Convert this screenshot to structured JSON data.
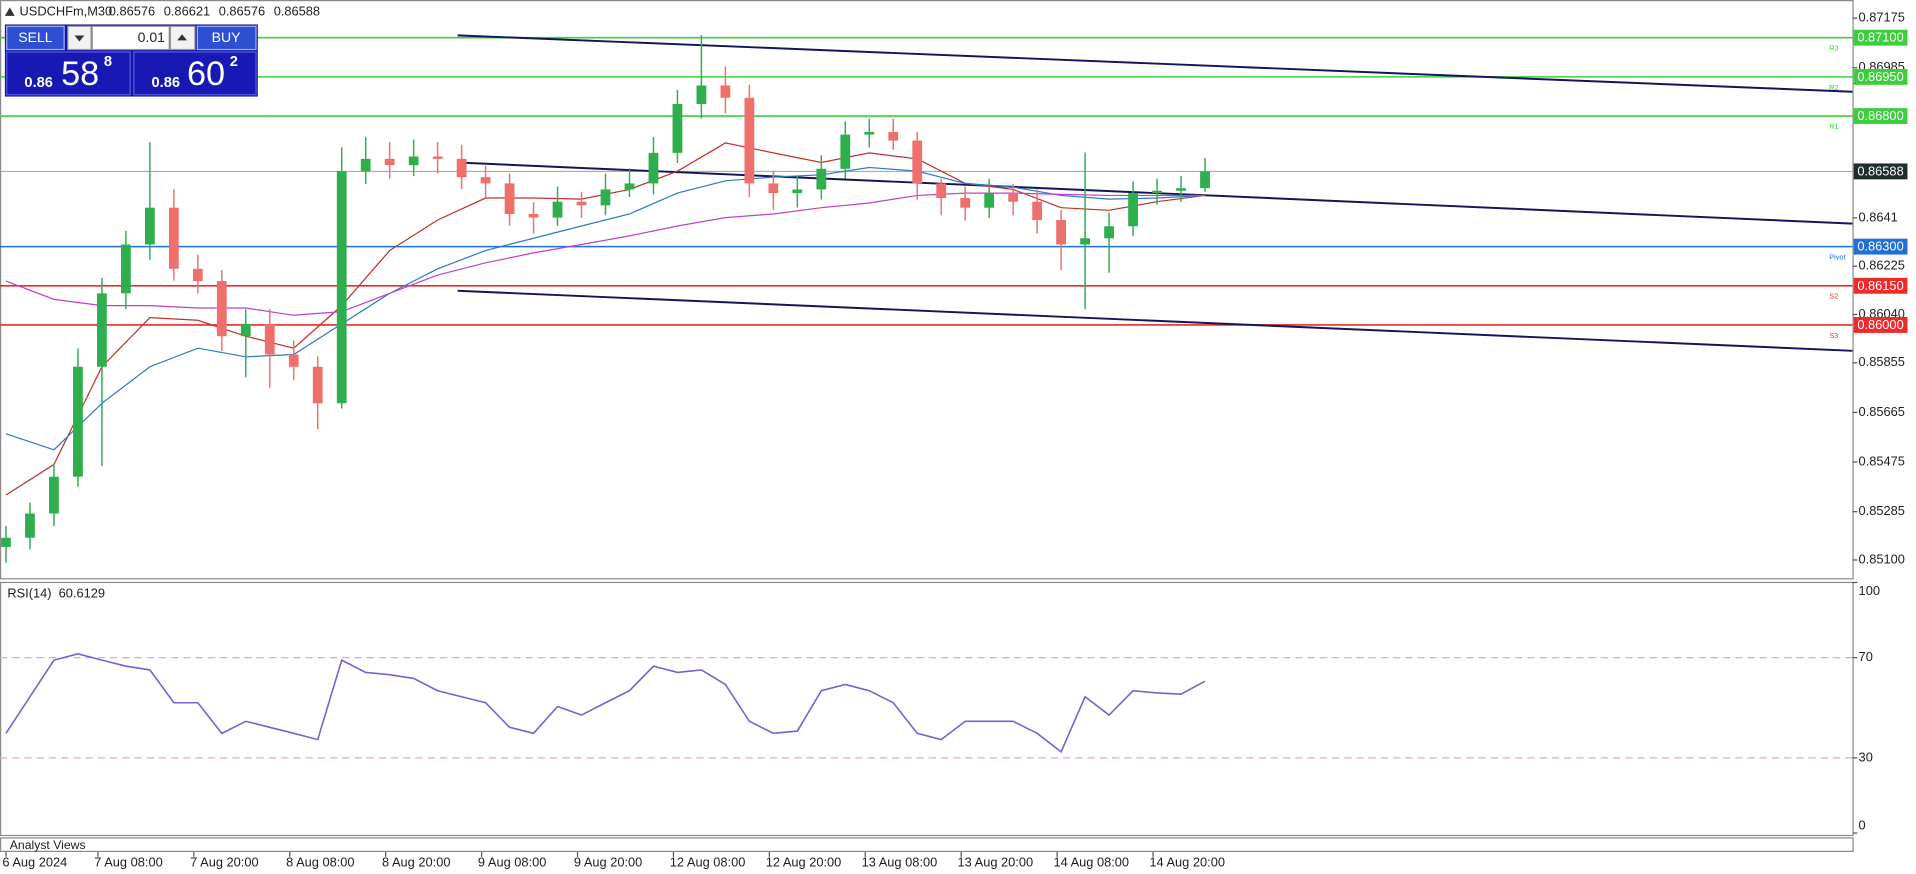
{
  "chart_data": [
    {
      "type": "candlestick",
      "title": "USDCHFm,M30",
      "header_values": [
        0.86576,
        0.86621,
        0.86576,
        0.86588
      ],
      "x": [
        0,
        6,
        12,
        18,
        24,
        30,
        36,
        42,
        48,
        54,
        60,
        66,
        72,
        78,
        84,
        90,
        96,
        102,
        108,
        114,
        120,
        126,
        132,
        138,
        144,
        150,
        156,
        162,
        168,
        174,
        180,
        186,
        192,
        198,
        204,
        210,
        216,
        222,
        228,
        234,
        240,
        246,
        252,
        258,
        264,
        270,
        276,
        282,
        288,
        294,
        300
      ],
      "open": [
        0.8515,
        0.85185,
        0.85278,
        0.85419,
        0.8584,
        0.86121,
        0.86308,
        0.86449,
        0.86215,
        0.86168,
        0.85957,
        0.86004,
        0.85887,
        0.8584,
        0.857,
        0.86589,
        0.86636,
        0.86612,
        0.86645,
        0.86636,
        0.86566,
        0.86542,
        0.86425,
        0.86411,
        0.86472,
        0.86458,
        0.86519,
        0.86542,
        0.86659,
        0.86846,
        0.86917,
        0.8687,
        0.86542,
        0.86505,
        0.86519,
        0.86598,
        0.86729,
        0.86739,
        0.86706,
        0.86542,
        0.86486,
        0.86449,
        0.86505,
        0.86472,
        0.86402,
        0.86308,
        0.86332,
        0.86378,
        0.86505,
        0.86514,
        0.86524
      ],
      "high": [
        0.8523,
        0.8532,
        0.8547,
        0.8591,
        0.8618,
        0.8636,
        0.867,
        0.8652,
        0.8627,
        0.8621,
        0.8606,
        0.8606,
        0.8594,
        0.8588,
        0.8668,
        0.8672,
        0.867,
        0.8671,
        0.867,
        0.8669,
        0.8661,
        0.8658,
        0.8647,
        0.8653,
        0.8651,
        0.8658,
        0.866,
        0.8672,
        0.869,
        0.8711,
        0.8699,
        0.8692,
        0.8659,
        0.8657,
        0.8665,
        0.8678,
        0.8679,
        0.8679,
        0.8674,
        0.8656,
        0.8653,
        0.8656,
        0.8654,
        0.8652,
        0.8644,
        0.8666,
        0.8643,
        0.8655,
        0.8656,
        0.8657,
        0.8664
      ],
      "low": [
        0.8509,
        0.8514,
        0.8523,
        0.8538,
        0.8546,
        0.8606,
        0.8625,
        0.8617,
        0.8612,
        0.859,
        0.858,
        0.8576,
        0.8579,
        0.856,
        0.8568,
        0.8654,
        0.8656,
        0.8657,
        0.8658,
        0.8652,
        0.8649,
        0.8638,
        0.8635,
        0.8638,
        0.8641,
        0.8642,
        0.8649,
        0.865,
        0.8662,
        0.8679,
        0.8681,
        0.8649,
        0.8644,
        0.8645,
        0.8648,
        0.8656,
        0.8668,
        0.8667,
        0.8648,
        0.8642,
        0.864,
        0.8641,
        0.8642,
        0.8635,
        0.8621,
        0.8606,
        0.862,
        0.8634,
        0.8646,
        0.8647,
        0.8651
      ],
      "close": [
        0.85185,
        0.85278,
        0.85419,
        0.8584,
        0.86121,
        0.86308,
        0.86449,
        0.86215,
        0.86168,
        0.85957,
        0.86004,
        0.85887,
        0.8584,
        0.857,
        0.86589,
        0.86636,
        0.86612,
        0.86645,
        0.86636,
        0.86566,
        0.86542,
        0.86425,
        0.86411,
        0.86472,
        0.86458,
        0.86519,
        0.86542,
        0.86659,
        0.86846,
        0.86917,
        0.8687,
        0.86542,
        0.86505,
        0.86519,
        0.86598,
        0.86729,
        0.86739,
        0.86706,
        0.86542,
        0.86486,
        0.86449,
        0.86505,
        0.86472,
        0.86402,
        0.86308,
        0.86332,
        0.86378,
        0.86505,
        0.86514,
        0.86524,
        0.86588
      ],
      "up_color": "#2fae4e",
      "down_color": "#ef6f6c",
      "series": [
        {
          "color": "#c0302a",
          "x": [
            0,
            12,
            24,
            36,
            48,
            60,
            72,
            84,
            96,
            108,
            120,
            132,
            144,
            156,
            168,
            180,
            192,
            204,
            216,
            228,
            240,
            252,
            264,
            276,
            288,
            300
          ],
          "values": [
            0.85349,
            0.85466,
            0.8584,
            0.86028,
            0.86018,
            0.85957,
            0.85911,
            0.86074,
            0.86285,
            0.86402,
            0.86486,
            0.86486,
            0.86482,
            0.86519,
            0.86589,
            0.86697,
            0.86659,
            0.86622,
            0.86659,
            0.86636,
            0.86542,
            0.86519,
            0.86449,
            0.86439,
            0.86472,
            0.86496
          ]
        },
        {
          "color": "#2e78c8",
          "x": [
            0,
            12,
            24,
            36,
            48,
            60,
            72,
            84,
            96,
            108,
            120,
            132,
            144,
            156,
            168,
            180,
            192,
            204,
            216,
            228,
            240,
            252,
            264,
            276,
            288,
            300
          ],
          "values": [
            0.85583,
            0.85522,
            0.857,
            0.8584,
            0.85911,
            0.85878,
            0.85887,
            0.86004,
            0.86121,
            0.86215,
            0.86285,
            0.86332,
            0.86379,
            0.86425,
            0.86505,
            0.86552,
            0.86566,
            0.86575,
            0.86603,
            0.86589,
            0.86542,
            0.86528,
            0.86496,
            0.86482,
            0.86486,
            0.86496
          ]
        },
        {
          "color": "#c040c8",
          "x": [
            0,
            12,
            24,
            36,
            48,
            60,
            72,
            84,
            96,
            108,
            120,
            132,
            144,
            156,
            168,
            180,
            192,
            204,
            216,
            228,
            240,
            252,
            264,
            276,
            288,
            300
          ],
          "values": [
            0.86168,
            0.86098,
            0.86074,
            0.86074,
            0.86065,
            0.86065,
            0.86037,
            0.86051,
            0.86121,
            0.86191,
            0.86238,
            0.86276,
            0.86308,
            0.86341,
            0.86379,
            0.86411,
            0.86425,
            0.86449,
            0.86467,
            0.86496,
            0.86505,
            0.86505,
            0.865,
            0.86496,
            0.86496,
            0.86496
          ]
        }
      ],
      "trendline_color": "#14145a",
      "trendlines": [
        {
          "x": [
            113,
            462
          ],
          "values": [
            0.87109,
            0.86893
          ]
        },
        {
          "x": [
            113,
            462
          ],
          "values": [
            0.86622,
            0.86388
          ]
        },
        {
          "x": [
            113,
            462
          ],
          "values": [
            0.86131,
            0.85901
          ]
        }
      ],
      "levels": [
        {
          "name": "R3",
          "value": 0.871,
          "label": "0.87100",
          "color": "#3ccf3c"
        },
        {
          "name": "R2",
          "value": 0.8695,
          "label": "0.86950",
          "color": "#3ccf3c"
        },
        {
          "name": "R1",
          "value": 0.868,
          "label": "0.86800",
          "color": "#3ccf3c"
        },
        {
          "name": "Pivot",
          "value": 0.863,
          "label": "0.86300",
          "color": "#1f6fd6"
        },
        {
          "name": "S2",
          "value": 0.8615,
          "label": "0.86150",
          "color": "#ee2a2a"
        },
        {
          "name": "S3",
          "value": 0.86,
          "label": "0.86000",
          "color": "#ee2a2a"
        }
      ],
      "last_price": 0.86588,
      "xlim": [
        -1.5,
        462
      ],
      "xticks": [
        {
          "value": 0,
          "label": "6 Aug 2024"
        },
        {
          "value": 23,
          "label": "7 Aug 08:00"
        },
        {
          "value": 47,
          "label": "7 Aug 20:00"
        },
        {
          "value": 71,
          "label": "8 Aug 08:00"
        },
        {
          "value": 95,
          "label": "8 Aug 20:00"
        },
        {
          "value": 119,
          "label": "9 Aug 08:00"
        },
        {
          "value": 143,
          "label": "9 Aug 20:00"
        },
        {
          "value": 167,
          "label": "12 Aug 08:00"
        },
        {
          "value": 191,
          "label": "12 Aug 20:00"
        },
        {
          "value": 215,
          "label": "13 Aug 08:00"
        },
        {
          "value": 239,
          "label": "13 Aug 20:00"
        },
        {
          "value": 263,
          "label": "14 Aug 08:00"
        },
        {
          "value": 287,
          "label": "14 Aug 20:00"
        }
      ],
      "ylim": [
        0.85035,
        0.87235
      ],
      "yticks": [
        0.87175,
        0.86985,
        0.8641,
        0.86225,
        {
          "value": 0.8604,
          "label": "0.86040"
        },
        0.85855,
        0.85665,
        0.85475,
        0.85285,
        {
          "value": 0.851,
          "label": "0.85100"
        }
      ]
    },
    {
      "type": "line",
      "title": "RSI(14)",
      "current": 60.6129,
      "color": "#7a5fd0",
      "x": [
        0,
        6,
        12,
        18,
        24,
        30,
        36,
        42,
        48,
        54,
        60,
        66,
        72,
        78,
        84,
        90,
        96,
        102,
        108,
        114,
        120,
        126,
        132,
        138,
        144,
        150,
        156,
        162,
        168,
        174,
        180,
        186,
        192,
        198,
        204,
        210,
        216,
        222,
        228,
        234,
        240,
        246,
        252,
        258,
        264,
        270,
        276,
        282,
        288,
        294,
        300
      ],
      "values": [
        39.8,
        54.4,
        69.0,
        71.5,
        69.0,
        66.6,
        65.1,
        52.0,
        52.0,
        39.8,
        44.6,
        42.2,
        39.8,
        37.3,
        69.0,
        64.1,
        63.2,
        61.7,
        56.8,
        54.4,
        52.0,
        42.2,
        39.8,
        50.5,
        47.1,
        52.0,
        56.8,
        66.6,
        64.1,
        65.1,
        59.3,
        44.6,
        39.8,
        40.7,
        56.8,
        59.3,
        56.8,
        52.0,
        39.8,
        37.3,
        44.6,
        44.6,
        44.6,
        39.8,
        32.4,
        54.4,
        47.1,
        56.8,
        55.9,
        55.4,
        60.6129
      ],
      "dashed_levels": [
        30,
        70
      ],
      "dashed_color": "#e0a6e0",
      "xlim": [
        -1.5,
        462
      ],
      "ylim": [
        0,
        100
      ],
      "yticks": [
        0,
        30,
        70,
        100
      ]
    }
  ],
  "trade_panel": {
    "sell_label": "SELL",
    "lot": "0.01",
    "buy_label": "BUY",
    "bid": {
      "big": "0.86",
      "pips": "58",
      "point": "8"
    },
    "ask": {
      "big": "0.86",
      "pips": "60",
      "point": "2"
    }
  },
  "footer": "Analyst Views"
}
